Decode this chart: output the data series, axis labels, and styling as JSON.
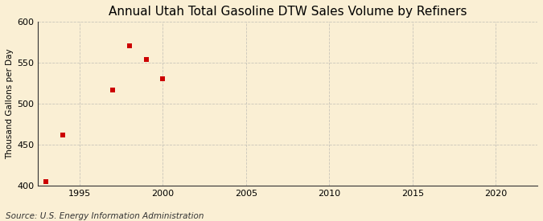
{
  "title": "Annual Utah Total Gasoline DTW Sales Volume by Refiners",
  "ylabel": "Thousand Gallons per Day",
  "source_text": "Source: U.S. Energy Information Administration",
  "x_data": [
    1993,
    1994,
    1997,
    1998,
    1999,
    2000
  ],
  "y_data": [
    405,
    462,
    517,
    571,
    554,
    531
  ],
  "marker_color": "#cc0000",
  "marker": "s",
  "marker_size": 4,
  "xlim": [
    1992.5,
    2022.5
  ],
  "ylim": [
    400,
    600
  ],
  "yticks": [
    400,
    450,
    500,
    550,
    600
  ],
  "xticks": [
    1995,
    2000,
    2005,
    2010,
    2015,
    2020
  ],
  "background_color": "#faefd4",
  "grid_color": "#aaaaaa",
  "title_fontsize": 11,
  "label_fontsize": 7.5,
  "tick_fontsize": 8,
  "source_fontsize": 7.5
}
